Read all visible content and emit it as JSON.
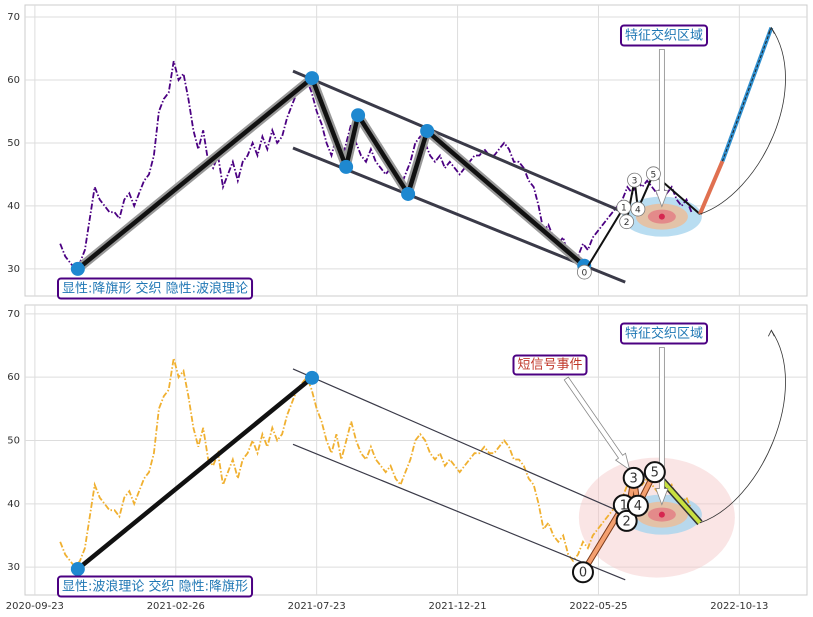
{
  "chart_data": [
    {
      "type": "line",
      "x": [
        18,
        21.5,
        25,
        28.5,
        32,
        35.5,
        39,
        42.5,
        46,
        49.5,
        53,
        56.5,
        60,
        63.5,
        67,
        70.5,
        74,
        77.5,
        81,
        84.5,
        88,
        91.5,
        95,
        98.5,
        102,
        105.5,
        109,
        112.5,
        116,
        119.5,
        123,
        126.5,
        130,
        133.5,
        137,
        140.5,
        144,
        147.5,
        151,
        154.5,
        158,
        161.5,
        165,
        168.5,
        172,
        175.5,
        179,
        182.5,
        186,
        189.5,
        193,
        196.5,
        200,
        203.5,
        207,
        210.5,
        214,
        217.5,
        221,
        224.5,
        228,
        231.5,
        235,
        238.5,
        242,
        245.5,
        249,
        252.5,
        256,
        259.5,
        263,
        266.5,
        270,
        273.5,
        277,
        280.5,
        284,
        287.5,
        291,
        294.5,
        298,
        301.5,
        305,
        308.5,
        312,
        315.5,
        319,
        322.5,
        326,
        329.5,
        333,
        336.5,
        340,
        343.5,
        347,
        350.5,
        354,
        357.5,
        361,
        364.5,
        368,
        371.5,
        375,
        378.5,
        382,
        385.5,
        389,
        392.5,
        396,
        399.5,
        403,
        406.5,
        410,
        413.5,
        417,
        420.5,
        424,
        427.5,
        431,
        434.5,
        438,
        441.5,
        445,
        448.5,
        452,
        455.5,
        459,
        462.5,
        466
      ],
      "series": [
        {
          "color": "#4b0082",
          "values": [
            34,
            32,
            31,
            30,
            31,
            33,
            38,
            43,
            41,
            40,
            39,
            39,
            38,
            41,
            42,
            40,
            42,
            44,
            45,
            48,
            55,
            57,
            58,
            63,
            60,
            61,
            57,
            52,
            49,
            52,
            47,
            46,
            48,
            43,
            45,
            47,
            44,
            47,
            48,
            50,
            48,
            51,
            49,
            52,
            50,
            51,
            54,
            56,
            58,
            59,
            60,
            58,
            55,
            53,
            50,
            48,
            51,
            47,
            50,
            53,
            50,
            48,
            47,
            49,
            47,
            46,
            45,
            46,
            44,
            43,
            45,
            47,
            50,
            51,
            50,
            48,
            47,
            48,
            46,
            47,
            46,
            45,
            46,
            47,
            48,
            48,
            49,
            48,
            48,
            49,
            50,
            49,
            47,
            47,
            46,
            44,
            43,
            40,
            36,
            37,
            35,
            34,
            35,
            32,
            31,
            32,
            34,
            33,
            35,
            36,
            37,
            38,
            39,
            40,
            41,
            43,
            42,
            44,
            43,
            44,
            43,
            42,
            43,
            42,
            43,
            41,
            40,
            41,
            39
          ]
        }
      ],
      "xlim": [
        -7,
        548
      ],
      "ylim": [
        25.7,
        71.9
      ],
      "xticks": [
        0,
        100,
        200,
        300,
        400,
        500
      ],
      "yticks": [
        30,
        40,
        50,
        60,
        70
      ],
      "grid": true,
      "pattern": {
        "x": [
          30.5,
          196.7,
          220.9,
          229.4,
          264.9,
          278.4,
          389.9
        ],
        "y": [
          30,
          60.3,
          46.2,
          54.4,
          41.9,
          51.9,
          30.5
        ]
      },
      "channel": {
        "upper": {
          "x": [
            183.2,
            419
          ],
          "y": [
            61.4,
            38.9
          ]
        },
        "lower": {
          "x": [
            183.2,
            419
          ],
          "y": [
            49.2,
            27.9
          ]
        }
      },
      "waves": {
        "labels": [
          "0",
          "1",
          "2",
          "3",
          "4",
          "5"
        ],
        "x": [
          390,
          418,
          420,
          425.6,
          428,
          439
        ],
        "y": [
          29.5,
          39.8,
          37.5,
          44.1,
          39.5,
          45.1
        ]
      },
      "projection": {
        "x": [
          472,
          488,
          522.7
        ],
        "y": [
          38.7,
          47.1,
          68.3
        ]
      },
      "target": {
        "x": 445,
        "y": 38.3
      },
      "annotations": [
        "显性:降旗形 交织 隐性:波浪理论",
        "特征交织区域"
      ]
    },
    {
      "type": "line",
      "x": [
        18,
        21.5,
        25,
        28.5,
        32,
        35.5,
        39,
        42.5,
        46,
        49.5,
        53,
        56.5,
        60,
        63.5,
        67,
        70.5,
        74,
        77.5,
        81,
        84.5,
        88,
        91.5,
        95,
        98.5,
        102,
        105.5,
        109,
        112.5,
        116,
        119.5,
        123,
        126.5,
        130,
        133.5,
        137,
        140.5,
        144,
        147.5,
        151,
        154.5,
        158,
        161.5,
        165,
        168.5,
        172,
        175.5,
        179,
        182.5,
        186,
        189.5,
        193,
        196.5,
        200,
        203.5,
        207,
        210.5,
        214,
        217.5,
        221,
        224.5,
        228,
        231.5,
        235,
        238.5,
        242,
        245.5,
        249,
        252.5,
        256,
        259.5,
        263,
        266.5,
        270,
        273.5,
        277,
        280.5,
        284,
        287.5,
        291,
        294.5,
        298,
        301.5,
        305,
        308.5,
        312,
        315.5,
        319,
        322.5,
        326,
        329.5,
        333,
        336.5,
        340,
        343.5,
        347,
        350.5,
        354,
        357.5,
        361,
        364.5,
        368,
        371.5,
        375,
        378.5,
        382,
        385.5,
        389,
        392.5,
        396,
        399.5,
        403,
        406.5,
        410,
        413.5,
        417,
        420.5,
        424,
        427.5,
        431,
        434.5,
        438,
        441.5,
        445,
        448.5,
        452,
        455.5,
        459,
        462.5,
        466
      ],
      "series": [
        {
          "color": "#f0b030",
          "values": [
            34,
            32,
            31,
            30,
            31,
            33,
            38,
            43,
            41,
            40,
            39,
            39,
            38,
            41,
            42,
            40,
            42,
            44,
            45,
            48,
            55,
            57,
            58,
            63,
            60,
            61,
            57,
            52,
            49,
            52,
            47,
            46,
            48,
            43,
            45,
            47,
            44,
            47,
            48,
            50,
            48,
            51,
            49,
            52,
            50,
            51,
            54,
            56,
            58,
            59,
            60,
            58,
            55,
            53,
            50,
            48,
            51,
            47,
            50,
            53,
            50,
            48,
            47,
            49,
            47,
            46,
            45,
            46,
            44,
            43,
            45,
            47,
            50,
            51,
            50,
            48,
            47,
            48,
            46,
            47,
            46,
            45,
            46,
            47,
            48,
            48,
            49,
            48,
            48,
            49,
            50,
            49,
            47,
            47,
            46,
            44,
            43,
            40,
            36,
            37,
            35,
            34,
            35,
            32,
            31,
            32,
            34,
            33,
            35,
            36,
            37,
            38,
            39,
            40,
            41,
            43,
            42,
            44,
            43,
            44,
            43,
            42,
            43,
            42,
            43,
            41,
            40,
            41,
            39
          ]
        }
      ],
      "xlim": [
        -7,
        548
      ],
      "ylim": [
        25.6,
        71.4
      ],
      "xticks": [
        {
          "value": 0,
          "label": "2020-09-23"
        },
        {
          "value": 100,
          "label": "2021-02-26"
        },
        {
          "value": 200,
          "label": "2021-07-23"
        },
        {
          "value": 300,
          "label": "2021-12-21"
        },
        {
          "value": 400,
          "label": "2022-05-25"
        },
        {
          "value": 500,
          "label": "2022-10-13"
        }
      ],
      "yticks": [
        30,
        40,
        50,
        60,
        70
      ],
      "grid": true,
      "pattern": {
        "x": [
          30.5,
          196.7
        ],
        "y": [
          29.7,
          59.9
        ]
      },
      "channel": {
        "upper": {
          "x": [
            183.2,
            419
          ],
          "y": [
            61.3,
            38.4
          ]
        },
        "lower": {
          "x": [
            183.2,
            419
          ],
          "y": [
            49.4,
            28.0
          ]
        }
      },
      "waves": {
        "labels": [
          "0",
          "1",
          "2",
          "3",
          "4",
          "5"
        ],
        "x": [
          389,
          418,
          420,
          425,
          428,
          440
        ],
        "y": [
          29.2,
          39.8,
          37.3,
          44.1,
          39.7,
          45.0
        ]
      },
      "projection": {
        "x": [
          472,
          522.7
        ],
        "y": [
          37.0,
          67.4
        ]
      },
      "target": {
        "x": 445,
        "y": 38.3
      },
      "annotations": [
        "显性:波浪理论 交织 隐性:降旗形",
        "特征交织区域",
        "短信号事件"
      ]
    }
  ]
}
